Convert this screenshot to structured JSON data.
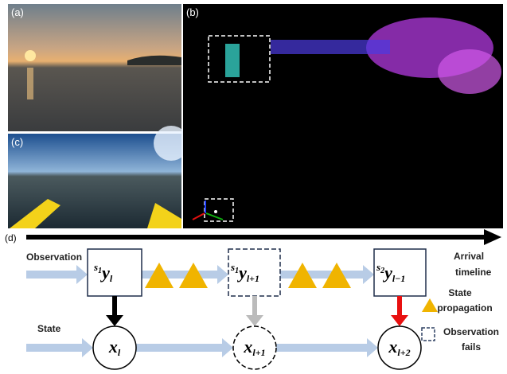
{
  "panels": {
    "a": "(a)",
    "b": "(b)",
    "c": "(c)",
    "d": "(d)"
  },
  "diagram": {
    "row_labels": {
      "observation": "Observation",
      "state": "State"
    },
    "timeline_label": [
      "Arrival",
      "timeline"
    ],
    "legend": {
      "propagation": [
        "State",
        "propagation"
      ],
      "fails": [
        "Observation",
        "fails"
      ]
    },
    "observations": [
      {
        "sup": "s",
        "sup_sub": "1",
        "main": "y",
        "sub": "l"
      },
      {
        "sup": "s",
        "sup_sub": "1",
        "main": "y",
        "sub": "l+1"
      },
      {
        "sup": "s",
        "sup_sub": "2",
        "main": "y",
        "sub": "l−1"
      }
    ],
    "states": [
      {
        "main": "x",
        "sub": "l"
      },
      {
        "main": "x",
        "sub": "l+1"
      },
      {
        "main": "x",
        "sub": "l+2"
      }
    ]
  }
}
